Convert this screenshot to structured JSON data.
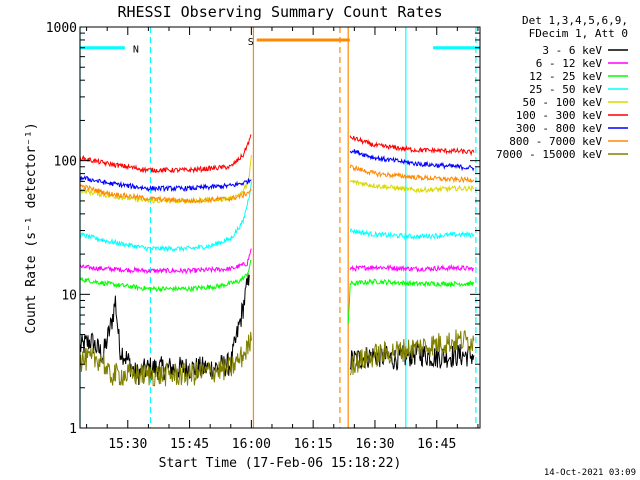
{
  "chart_data": {
    "type": "line",
    "title": "RHESSI Observing Summary Count Rates",
    "xlabel": "Start Time (17-Feb-06 15:18:22)",
    "ylabel": "Count Rate (s⁻¹ detector⁻¹)",
    "y_scale": "log",
    "ylim": [
      1,
      1000
    ],
    "xlim_minutes_of_day": [
      918.4,
      1015.5
    ],
    "x_ticks": [
      {
        "t": 930,
        "label": "15:30"
      },
      {
        "t": 945,
        "label": "15:45"
      },
      {
        "t": 960,
        "label": "16:00"
      },
      {
        "t": 975,
        "label": "16:15"
      },
      {
        "t": 990,
        "label": "16:30"
      },
      {
        "t": 1005,
        "label": "16:45"
      }
    ],
    "y_ticks": [
      {
        "v": 1,
        "label": "1"
      },
      {
        "v": 10,
        "label": "10"
      },
      {
        "v": 100,
        "label": "100"
      },
      {
        "v": 1000,
        "label": "1000"
      }
    ],
    "legend_header": [
      "Det 1,3,4,5,6,9,",
      "FDecim 1, Att 0"
    ],
    "legend_position": "right",
    "series": [
      {
        "name": "3 - 6 keV",
        "color": "#000000",
        "segments": [
          [
            [
              918.4,
              4
            ],
            [
              921,
              4.5
            ],
            [
              924,
              3.5
            ],
            [
              926,
              6
            ],
            [
              927,
              9
            ],
            [
              928,
              4
            ],
            [
              930,
              3.2
            ],
            [
              932,
              2.5
            ],
            [
              935,
              2.8
            ],
            [
              940,
              2.8
            ],
            [
              945,
              2.8
            ],
            [
              950,
              2.8
            ],
            [
              955,
              3.0
            ],
            [
              958,
              8
            ],
            [
              959.5,
              14
            ]
          ],
          [
            [
              984,
              3.2
            ],
            [
              990,
              3.5
            ],
            [
              995,
              3.3
            ],
            [
              1000,
              3.6
            ],
            [
              1005,
              3.4
            ],
            [
              1010,
              3.5
            ],
            [
              1014,
              3.5
            ]
          ]
        ]
      },
      {
        "name": "6 - 12 keV",
        "color": "#ff00ff",
        "segments": [
          [
            [
              918.4,
              16
            ],
            [
              925,
              15.5
            ],
            [
              935,
              15
            ],
            [
              945,
              15
            ],
            [
              955,
              15.5
            ],
            [
              959,
              17
            ],
            [
              960,
              22
            ]
          ],
          [
            [
              984,
              15.5
            ],
            [
              990,
              16
            ],
            [
              1000,
              15.5
            ],
            [
              1010,
              15.8
            ],
            [
              1014,
              15.5
            ]
          ]
        ]
      },
      {
        "name": "12 - 25 keV",
        "color": "#00ff00",
        "segments": [
          [
            [
              918.4,
              13
            ],
            [
              925,
              12
            ],
            [
              935,
              11
            ],
            [
              945,
              11
            ],
            [
              952,
              11.5
            ],
            [
              957,
              12.5
            ],
            [
              959,
              14
            ],
            [
              960,
              18
            ]
          ],
          [
            [
              983.5,
              6
            ],
            [
              984,
              12
            ],
            [
              990,
              12.5
            ],
            [
              1000,
              12
            ],
            [
              1010,
              12
            ],
            [
              1014,
              12
            ]
          ]
        ]
      },
      {
        "name": "25 - 50 keV",
        "color": "#00ffff",
        "segments": [
          [
            [
              918.4,
              28
            ],
            [
              925,
              25
            ],
            [
              935,
              22
            ],
            [
              945,
              22
            ],
            [
              950,
              23
            ],
            [
              955,
              26
            ],
            [
              958,
              35
            ],
            [
              959.5,
              55
            ],
            [
              960,
              70
            ]
          ],
          [
            [
              984,
              30
            ],
            [
              990,
              28
            ],
            [
              1000,
              27
            ],
            [
              1010,
              28
            ],
            [
              1014,
              28
            ]
          ]
        ]
      },
      {
        "name": "50 - 100 keV",
        "color": "#d8d800",
        "segments": [
          [
            [
              918.4,
              60
            ],
            [
              925,
              55
            ],
            [
              935,
              50
            ],
            [
              945,
              50
            ],
            [
              955,
              52
            ],
            [
              958,
              58
            ],
            [
              959.5,
              75
            ],
            [
              960,
              110
            ]
          ],
          [
            [
              984,
              70
            ],
            [
              990,
              65
            ],
            [
              1000,
              60
            ],
            [
              1010,
              62
            ],
            [
              1014,
              62
            ]
          ]
        ]
      },
      {
        "name": "100 - 300 keV",
        "color": "#ff0000",
        "segments": [
          [
            [
              918.4,
              105
            ],
            [
              925,
              95
            ],
            [
              935,
              85
            ],
            [
              945,
              85
            ],
            [
              955,
              90
            ],
            [
              958,
              110
            ],
            [
              960,
              155
            ]
          ],
          [
            [
              984,
              150
            ],
            [
              990,
              130
            ],
            [
              1000,
              120
            ],
            [
              1010,
              118
            ],
            [
              1014,
              115
            ]
          ]
        ]
      },
      {
        "name": "300 - 800 keV",
        "color": "#0000ff",
        "segments": [
          [
            [
              918.4,
              75
            ],
            [
              925,
              68
            ],
            [
              935,
              62
            ],
            [
              945,
              62
            ],
            [
              955,
              65
            ],
            [
              958,
              68
            ],
            [
              960,
              72
            ]
          ],
          [
            [
              984,
              120
            ],
            [
              990,
              105
            ],
            [
              1000,
              95
            ],
            [
              1010,
              90
            ],
            [
              1014,
              88
            ]
          ]
        ]
      },
      {
        "name": "800 - 7000 keV",
        "color": "#ff8800",
        "segments": [
          [
            [
              918.4,
              65
            ],
            [
              925,
              57
            ],
            [
              935,
              52
            ],
            [
              945,
              50
            ],
            [
              955,
              52
            ],
            [
              958,
              55
            ],
            [
              960,
              60
            ]
          ],
          [
            [
              984,
              90
            ],
            [
              990,
              80
            ],
            [
              1000,
              75
            ],
            [
              1010,
              72
            ],
            [
              1014,
              72
            ]
          ]
        ]
      },
      {
        "name": "7000 - 15000 keV",
        "color": "#808000",
        "segments": [
          [
            [
              918.4,
              3.2
            ],
            [
              924,
              3.3
            ],
            [
              925,
              2.5
            ],
            [
              940,
              2.5
            ],
            [
              945,
              2.5
            ],
            [
              955,
              2.8
            ],
            [
              958,
              3.5
            ],
            [
              960,
              4.5
            ]
          ],
          [
            [
              984,
              3
            ],
            [
              990,
              3.5
            ],
            [
              1000,
              4
            ],
            [
              1010,
              4.5
            ],
            [
              1014,
              4.5
            ]
          ]
        ]
      }
    ],
    "state_bars": [
      {
        "label": "N",
        "color": "#00ffff",
        "t_start": 918.4,
        "t_end": 929.3,
        "value": 700
      },
      {
        "label": "",
        "color": "#00ffff",
        "t_start": 1004.1,
        "t_end": 1015.5,
        "value": 700
      },
      {
        "label": "S",
        "color": "#ff8800",
        "t_start": 961.3,
        "t_end": 983.9,
        "value": 800
      }
    ],
    "vertical_markers": [
      {
        "t": 918.4,
        "color": "#00ffff",
        "style": "solid"
      },
      {
        "t": 935.5,
        "color": "#00ffff",
        "style": "dashed"
      },
      {
        "t": 960.5,
        "color": "#ff8800",
        "style": "solid"
      },
      {
        "t": 981.5,
        "color": "#ff8800",
        "style": "dashed"
      },
      {
        "t": 983.5,
        "color": "#ff8800",
        "style": "solid"
      },
      {
        "t": 997.5,
        "color": "#00ffff",
        "style": "solid"
      },
      {
        "t": 1014.5,
        "color": "#00ffff",
        "style": "dashed"
      }
    ]
  },
  "footer": {
    "timestamp": "14-Oct-2021 03:09"
  }
}
